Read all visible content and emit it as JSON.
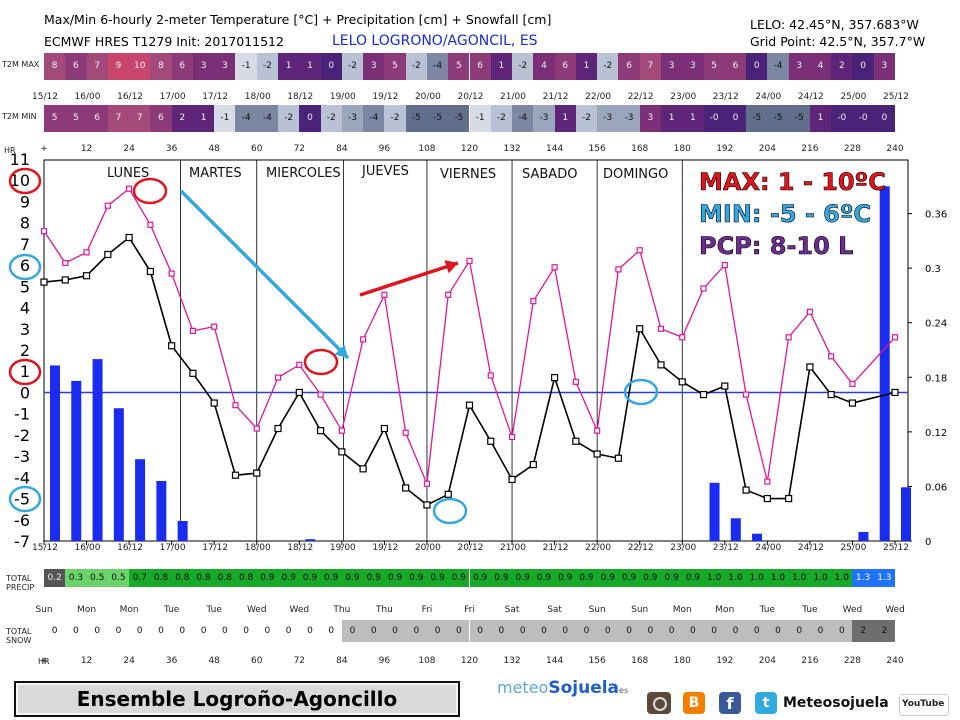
{
  "header": {
    "title": "Max/Min 6-hourly 2-meter Temperature [°C] + Precipitation [cm] + Snowfall [cm]",
    "model": "ECMWF HRES T1279 Init: 2017011512",
    "location": "LELO LOGRONO/AGONCIL, ES",
    "coords": "LELO: 42.45°N, 357.683°W",
    "gridpoint": "Grid Point: 42.5°N, 357.7°W"
  },
  "labels": {
    "t2m_max": "T2M MAX",
    "t2m_min": "T2M MIN",
    "hr": "HR",
    "total_precip": [
      "TOTAL",
      "PRECIP"
    ],
    "total_snow": [
      "TOTAL",
      "SNOW"
    ]
  },
  "date_ticks": [
    "15/12",
    "16/00",
    "16/12",
    "17/00",
    "17/12",
    "18/00",
    "18/12",
    "19/00",
    "19/12",
    "20/00",
    "20/12",
    "21/00",
    "21/12",
    "22/00",
    "22/12",
    "23/00",
    "23/12",
    "24/00",
    "24/12",
    "25/00",
    "25/12"
  ],
  "hour_ticks": [
    "+",
    "12",
    "24",
    "36",
    "48",
    "60",
    "72",
    "84",
    "96",
    "108",
    "120",
    "132",
    "144",
    "156",
    "168",
    "180",
    "192",
    "204",
    "216",
    "228",
    "240"
  ],
  "weekday_ticks": [
    "Sun",
    "Mon",
    "Mon",
    "Tue",
    "Tue",
    "Wed",
    "Wed",
    "Thu",
    "Thu",
    "Fri",
    "Fri",
    "Sat",
    "Sat",
    "Sun",
    "Sun",
    "Mon",
    "Mon",
    "Tue",
    "Tue",
    "Wed",
    "Wed"
  ],
  "days": [
    "LUNES",
    "MARTES",
    "MIERCOLES",
    "JUEVES",
    "VIERNES",
    "SABADO",
    "DOMINGO"
  ],
  "max_row": [
    "8",
    "6",
    "7",
    "9",
    "10",
    "8",
    "6",
    "3",
    "3",
    "-1",
    "-2",
    "1",
    "1",
    "0",
    "-2",
    "3",
    "5",
    "-2",
    "-4",
    "5",
    "6",
    "1",
    "-2",
    "4",
    "6",
    "1",
    "-2",
    "6",
    "7",
    "3",
    "3",
    "5",
    "6",
    "0",
    "-4",
    "3",
    "4",
    "2",
    "0",
    "3"
  ],
  "min_row": [
    "5",
    "5",
    "6",
    "7",
    "7",
    "6",
    "2",
    "1",
    "-1",
    "-4",
    "-4",
    "-2",
    "0",
    "-2",
    "-3",
    "-4",
    "-2",
    "-5",
    "-5",
    "-5",
    "-1",
    "-2",
    "-4",
    "-3",
    "1",
    "-2",
    "-3",
    "-3",
    "3",
    "1",
    "1",
    "-0",
    "0",
    "-5",
    "-5",
    "-5",
    "1",
    "-0",
    "-0",
    "0"
  ],
  "precip_row": [
    "0.2",
    "0.3",
    "0.5",
    "0.5",
    "0.7",
    "0.8",
    "0.8",
    "0.8",
    "0.8",
    "0.8",
    "0.9",
    "0.9",
    "0.9",
    "0.9",
    "0.9",
    "0.9",
    "0.9",
    "0.9",
    "0.9",
    "0.9",
    "0.9",
    "0.9",
    "0.9",
    "0.9",
    "0.9",
    "0.9",
    "0.9",
    "0.9",
    "0.9",
    "0.9",
    "0.9",
    "1.0",
    "1.0",
    "1.0",
    "1.0",
    "1.0",
    "1.0",
    "1.0",
    "1.3",
    "1.3"
  ],
  "snow_row": [
    "0",
    "0",
    "0",
    "0",
    "0",
    "0",
    "0",
    "0",
    "0",
    "0",
    "0",
    "0",
    "0",
    "0",
    "0",
    "0",
    "0",
    "0",
    "0",
    "0",
    "0",
    "0",
    "0",
    "0",
    "0",
    "0",
    "0",
    "0",
    "0",
    "0",
    "0",
    "0",
    "0",
    "0",
    "0",
    "0",
    "0",
    "0",
    "2",
    "2"
  ],
  "colors": {
    "max_line": "#e0169a",
    "min_line": "#000000",
    "bars": "#1a2cf0",
    "zero_line": "#2a3fc4",
    "max_text": "#e0141c",
    "min_text": "#35a7e0",
    "pcp_text": "#6b2d8f",
    "precip_green": "#18a82a",
    "precip_blue": "#1e74ff",
    "snow_grey": "#bdbdbd",
    "snow_dark": "#6e6e6e"
  },
  "annotations": {
    "max": "MAX: 1 - 10ºC",
    "min": "MIN: -5 - 6ºC",
    "pcp": "PCP: 8-10 L"
  },
  "chart_data": {
    "type": "line",
    "x_hours": [
      0,
      6,
      12,
      18,
      24,
      30,
      36,
      42,
      48,
      54,
      60,
      66,
      72,
      78,
      84,
      90,
      96,
      102,
      108,
      114,
      120,
      126,
      132,
      138,
      144,
      150,
      156,
      162,
      168,
      174,
      180,
      186,
      192,
      198,
      204,
      210,
      216,
      222,
      228,
      234,
      240
    ],
    "series": [
      {
        "values": [
          7.6,
          6.1,
          6.6,
          8.8,
          9.6,
          7.9,
          5.6,
          2.9,
          3.1,
          -0.6,
          -1.7,
          0.7,
          1.3,
          -0.1,
          -1.8,
          2.5,
          4.6,
          -1.9,
          -4.3,
          4.6,
          6.2,
          0.8,
          -2.1,
          4.3,
          5.9,
          0.5,
          -1.8,
          5.8,
          6.7,
          3.0,
          2.6,
          4.9,
          6.0,
          -0.1,
          -4.2,
          2.6,
          3.8,
          1.7,
          0.4,
          2.6
        ],
        "x_indices": [
          0,
          1,
          2,
          3,
          4,
          5,
          6,
          7,
          8,
          9,
          10,
          11,
          12,
          13,
          14,
          15,
          16,
          17,
          18,
          19,
          20,
          21,
          22,
          23,
          24,
          25,
          26,
          27,
          28,
          29,
          30,
          31,
          32,
          33,
          34,
          35,
          36,
          37,
          38,
          40
        ]
      },
      {
        "values": [
          5.2,
          5.3,
          5.5,
          6.5,
          7.3,
          5.7,
          2.2,
          0.9,
          -0.5,
          -3.9,
          -3.8,
          -1.7,
          0.0,
          -1.8,
          -2.8,
          -3.6,
          -1.7,
          -4.5,
          -5.3,
          -4.8,
          -0.6,
          -2.3,
          -4.1,
          -3.4,
          0.7,
          -2.3,
          -2.9,
          -3.1,
          3.0,
          1.3,
          0.5,
          -0.1,
          0.3,
          -4.6,
          -5.0,
          -5.0,
          1.2,
          -0.1,
          -0.5,
          0.0
        ],
        "x_indices": [
          0,
          1,
          2,
          3,
          4,
          5,
          6,
          7,
          8,
          9,
          10,
          11,
          12,
          13,
          14,
          15,
          16,
          17,
          18,
          19,
          20,
          21,
          22,
          23,
          24,
          25,
          26,
          27,
          28,
          29,
          30,
          31,
          32,
          33,
          34,
          35,
          36,
          37,
          38,
          40
        ]
      }
    ],
    "precip_bars": [
      0.193,
      0,
      0.176,
      0.2,
      0.146,
      0.09,
      0.066,
      0.022,
      0,
      0,
      0,
      0,
      0,
      0.002,
      0,
      0,
      0,
      0,
      0,
      0,
      0,
      0,
      0,
      0,
      0,
      0,
      0,
      0,
      0,
      0,
      0,
      0,
      0.064,
      0.025,
      0.008,
      0,
      0,
      0,
      0,
      0.01,
      0.39,
      0.059
    ],
    "bar_hours": [
      0,
      3,
      6,
      12,
      18,
      24,
      30,
      36,
      42,
      48,
      54,
      60,
      66,
      72,
      78,
      84,
      90,
      96,
      102,
      108,
      114,
      120,
      126,
      132,
      138,
      144,
      150,
      156,
      162,
      168,
      174,
      180,
      186,
      192,
      198,
      204,
      210,
      216,
      222,
      228,
      234,
      240
    ],
    "ylim": [
      -7,
      11
    ],
    "y_ticks": [
      -7,
      -6,
      -5,
      -4,
      -3,
      -2,
      -1,
      0,
      1,
      2,
      3,
      4,
      5,
      6,
      7,
      8,
      9,
      10,
      11
    ],
    "y2lim": [
      0,
      0.42
    ],
    "y2_ticks": [
      "0",
      "0.06",
      "0.12",
      "0.18",
      "0.24",
      "0.3",
      "0.36"
    ],
    "xlim": [
      0,
      240
    ]
  },
  "footer": {
    "title": "Ensemble Logroño-Agoncillo",
    "brand_left": "meteo",
    "brand_right": "Sojuela",
    "brand_suffix": "es",
    "social": "Meteosojuela",
    "youtube": "YouTube"
  }
}
